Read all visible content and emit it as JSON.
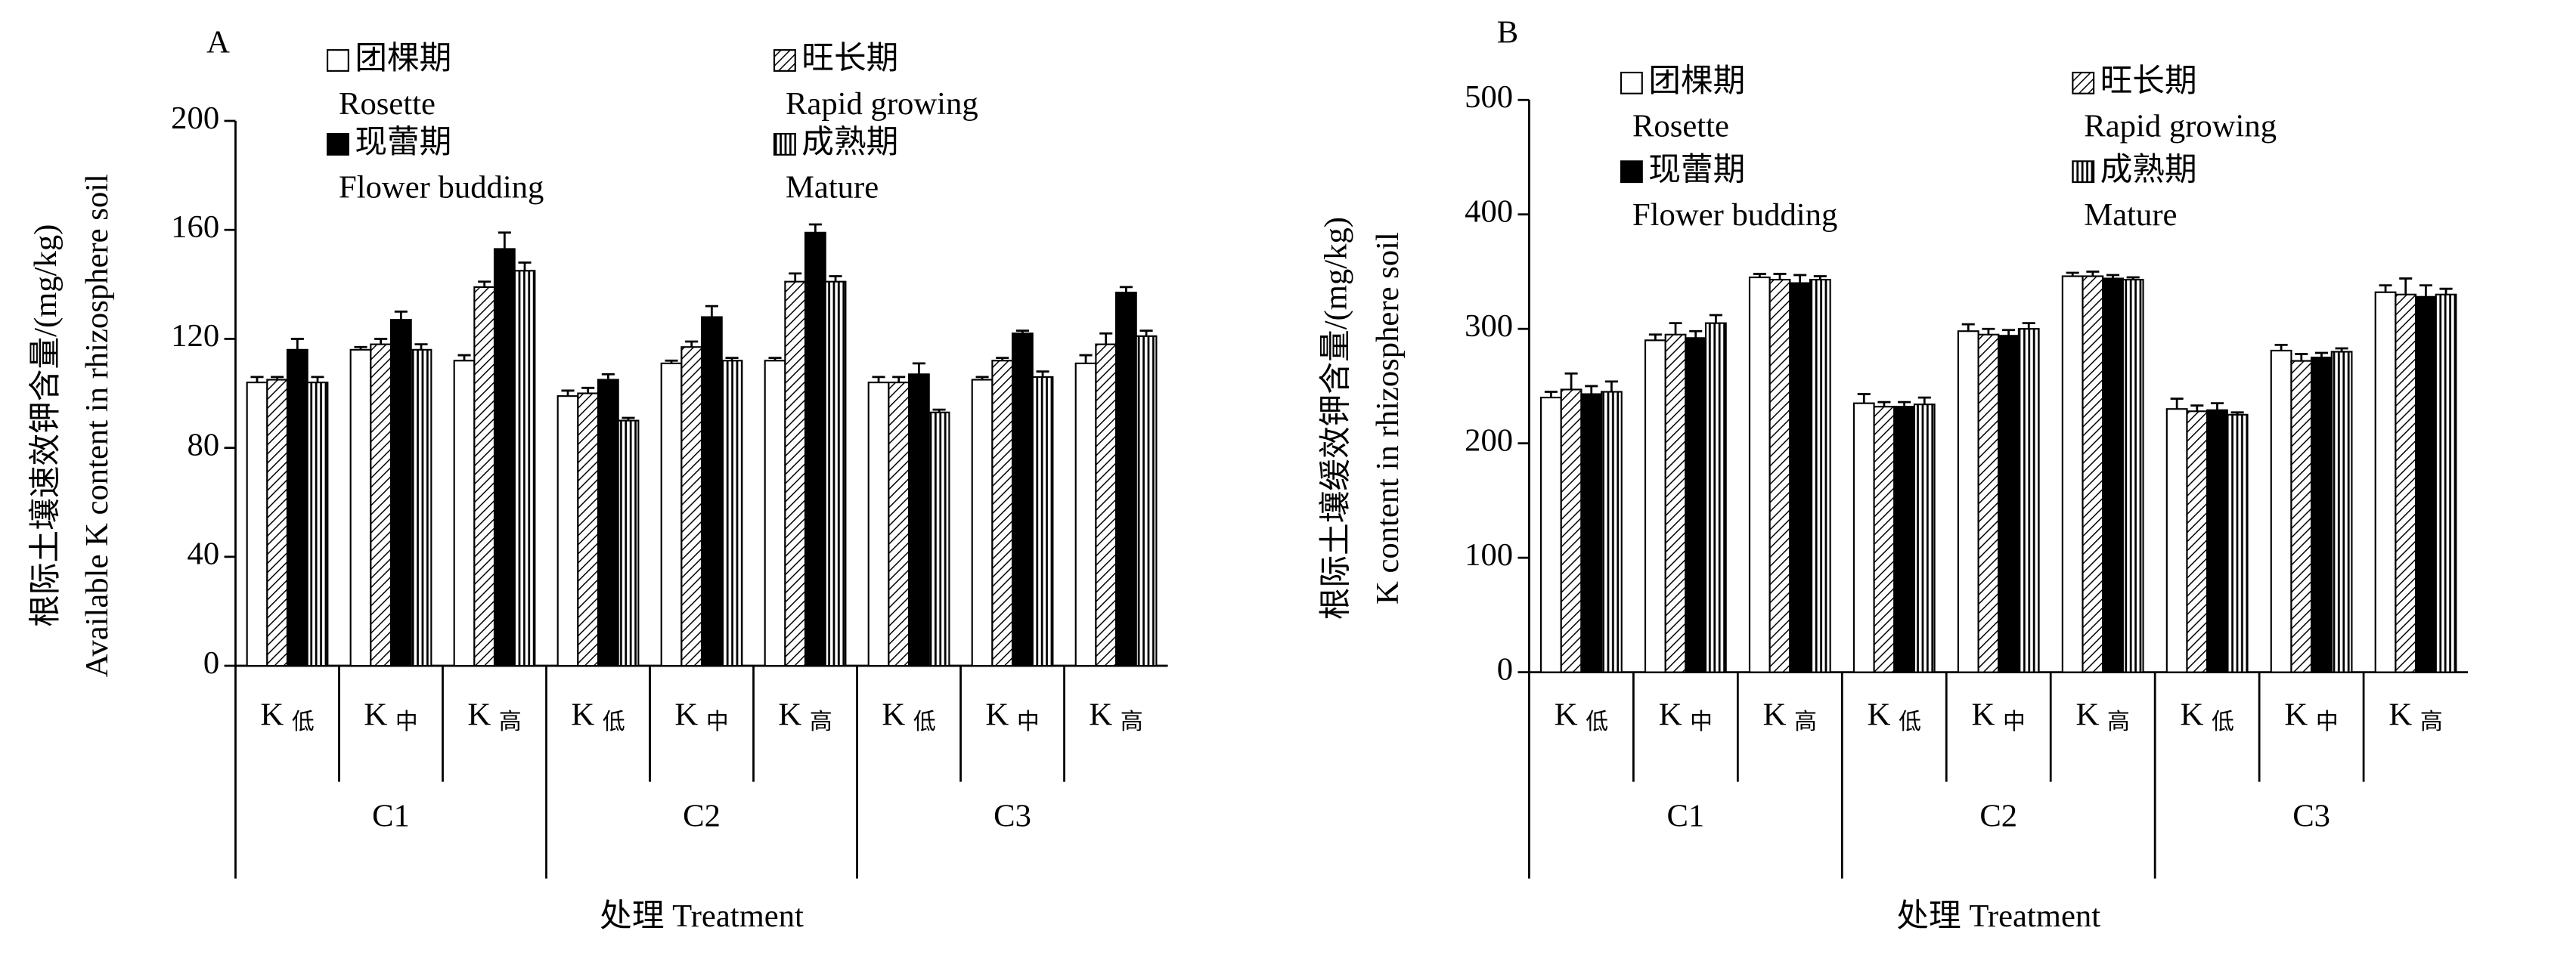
{
  "chart_data": [
    {
      "type": "bar",
      "label": "A",
      "ylabel": [
        "根际土壤速效钾含量/(mg/kg)",
        "Available K content in rhizosphere soil"
      ],
      "xlabel": "处理 Treatment",
      "categories": [
        "K低",
        "K中",
        "K高",
        "K低",
        "K中",
        "K高",
        "K低",
        "K中",
        "K高"
      ],
      "groups": [
        "C1",
        "C2",
        "C3"
      ],
      "ylim": [
        0,
        200
      ],
      "yticks": [
        0,
        40,
        80,
        120,
        160,
        200
      ],
      "series": [
        {
          "name": "团棵期 Rosette",
          "pattern": "white",
          "values": [
            104,
            116,
            112,
            99,
            111,
            112,
            104,
            105,
            111
          ],
          "errors": [
            2,
            1,
            2,
            2,
            1,
            1,
            2,
            1,
            3
          ]
        },
        {
          "name": "旺长期 Rapid growing",
          "pattern": "diagonal",
          "values": [
            105,
            118,
            139,
            100,
            117,
            141,
            104,
            112,
            118
          ],
          "errors": [
            1,
            2,
            2,
            2,
            2,
            3,
            2,
            1,
            4
          ]
        },
        {
          "name": "现蕾期 Flower budding",
          "pattern": "black",
          "values": [
            116,
            127,
            153,
            105,
            128,
            159,
            107,
            122,
            137
          ],
          "errors": [
            4,
            3,
            6,
            2,
            4,
            3,
            4,
            1,
            2
          ]
        },
        {
          "name": "成熟期 Mature",
          "pattern": "vertical",
          "values": [
            104,
            116,
            145,
            90,
            112,
            141,
            93,
            106,
            121
          ],
          "errors": [
            2,
            2,
            3,
            1,
            1,
            2,
            1,
            2,
            2
          ]
        }
      ]
    },
    {
      "type": "bar",
      "label": "B",
      "ylabel": [
        "根际土壤缓效钾含量/(mg/kg)",
        "K content in rhizosphere soil"
      ],
      "xlabel": "处理 Treatment",
      "categories": [
        "K低",
        "K中",
        "K高",
        "K低",
        "K中",
        "K高",
        "K低",
        "K中",
        "K高"
      ],
      "groups": [
        "C1",
        "C2",
        "C3"
      ],
      "ylim": [
        0,
        500
      ],
      "yticks": [
        0,
        100,
        200,
        300,
        400,
        500
      ],
      "series": [
        {
          "name": "团棵期 Rosette",
          "pattern": "white",
          "values": [
            240,
            290,
            345,
            235,
            298,
            346,
            230,
            281,
            332
          ],
          "errors": [
            5,
            5,
            3,
            8,
            6,
            3,
            9,
            5,
            6
          ]
        },
        {
          "name": "旺长期 Rapid growing",
          "pattern": "diagonal",
          "values": [
            247,
            295,
            343,
            232,
            295,
            346,
            228,
            272,
            330
          ],
          "errors": [
            14,
            10,
            5,
            4,
            5,
            4,
            5,
            6,
            14
          ]
        },
        {
          "name": "现蕾期 Flower budding",
          "pattern": "black",
          "values": [
            243,
            292,
            340,
            232,
            294,
            344,
            229,
            275,
            328
          ],
          "errors": [
            7,
            6,
            7,
            4,
            5,
            3,
            6,
            4,
            10
          ]
        },
        {
          "name": "成熟期 Mature",
          "pattern": "vertical",
          "values": [
            245,
            305,
            343,
            234,
            300,
            343,
            225,
            280,
            330
          ],
          "errors": [
            9,
            7,
            3,
            6,
            5,
            2,
            2,
            3,
            5
          ]
        }
      ]
    }
  ]
}
